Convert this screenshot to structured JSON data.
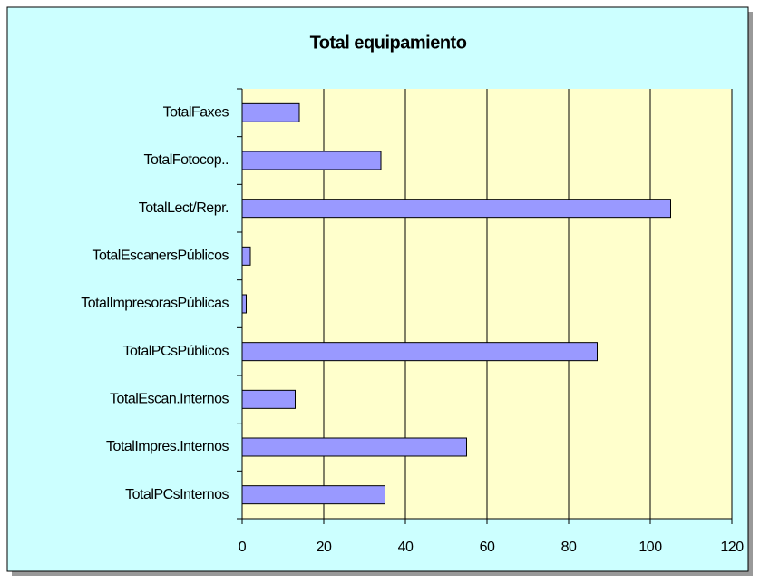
{
  "chart_data": {
    "type": "bar",
    "orientation": "horizontal",
    "title": "Total equipamiento",
    "categories": [
      "TotalFaxes",
      "TotalFotocop..",
      "TotalLect/Repr.",
      "TotalEscanersPúblicos",
      "TotalImpresorasPúblicas",
      "TotalPCsPúblicos",
      "TotalEscan.Internos",
      "TotalImpres.Internos",
      "TotalPCsInternos"
    ],
    "values": [
      14,
      34,
      105,
      2,
      1,
      87,
      13,
      55,
      35
    ],
    "color": "#9999ff",
    "xlim": [
      0,
      120
    ],
    "xticks": [
      0,
      20,
      40,
      60,
      80,
      100,
      120
    ],
    "grid": true
  }
}
